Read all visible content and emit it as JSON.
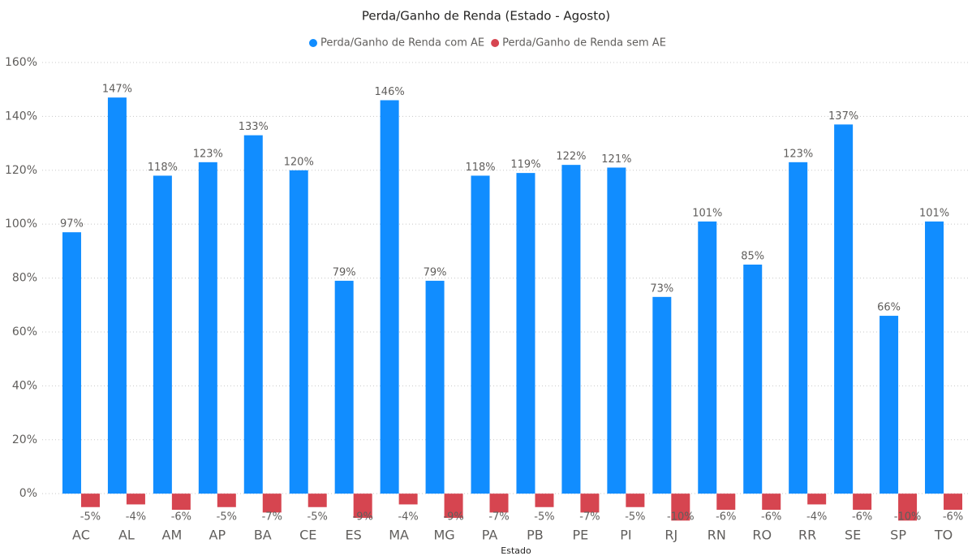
{
  "chart_data": {
    "type": "bar",
    "title": "Perda/Ganho de Renda (Estado - Agosto)",
    "x_label": "Estado",
    "categories": [
      "AC",
      "AL",
      "AM",
      "AP",
      "BA",
      "CE",
      "ES",
      "MA",
      "MG",
      "PA",
      "PB",
      "PE",
      "PI",
      "RJ",
      "RN",
      "RO",
      "RR",
      "SE",
      "SP",
      "TO"
    ],
    "series": [
      {
        "name": "Perda/Ganho de Renda com AE",
        "color": "#118dff",
        "values": [
          97,
          147,
          118,
          123,
          133,
          120,
          79,
          146,
          79,
          118,
          119,
          122,
          121,
          73,
          101,
          85,
          123,
          137,
          66,
          101
        ],
        "value_labels": [
          "97%",
          "147%",
          "118%",
          "123%",
          "133%",
          "120%",
          "79%",
          "146%",
          "79%",
          "118%",
          "119%",
          "122%",
          "121%",
          "73%",
          "101%",
          "85%",
          "123%",
          "137%",
          "66%",
          "101%"
        ]
      },
      {
        "name": "Perda/Ganho de Renda sem AE",
        "color": "#d64550",
        "values": [
          -5,
          -4,
          -6,
          -5,
          -7,
          -5,
          -9,
          -4,
          -9,
          -7,
          -5,
          -7,
          -5,
          -10,
          -6,
          -6,
          -4,
          -6,
          -10,
          -6
        ],
        "value_labels": [
          "-5%",
          "-4%",
          "-6%",
          "-5%",
          "-7%",
          "-5%",
          "-9%",
          "-4%",
          "-9%",
          "-7%",
          "-5%",
          "-7%",
          "-5%",
          "-10%",
          "-6%",
          "-6%",
          "-4%",
          "-6%",
          "-10%",
          "-6%"
        ]
      }
    ],
    "ylim": [
      -12,
      160
    ],
    "yticks": [
      {
        "value": 0,
        "label": "0%"
      },
      {
        "value": 20,
        "label": "20%"
      },
      {
        "value": 40,
        "label": "40%"
      },
      {
        "value": 60,
        "label": "60%"
      },
      {
        "value": 80,
        "label": "80%"
      },
      {
        "value": 100,
        "label": "100%"
      },
      {
        "value": 120,
        "label": "120%"
      },
      {
        "value": 140,
        "label": "140%"
      },
      {
        "value": 160,
        "label": "160%"
      }
    ],
    "grid": true,
    "legend": "top"
  }
}
